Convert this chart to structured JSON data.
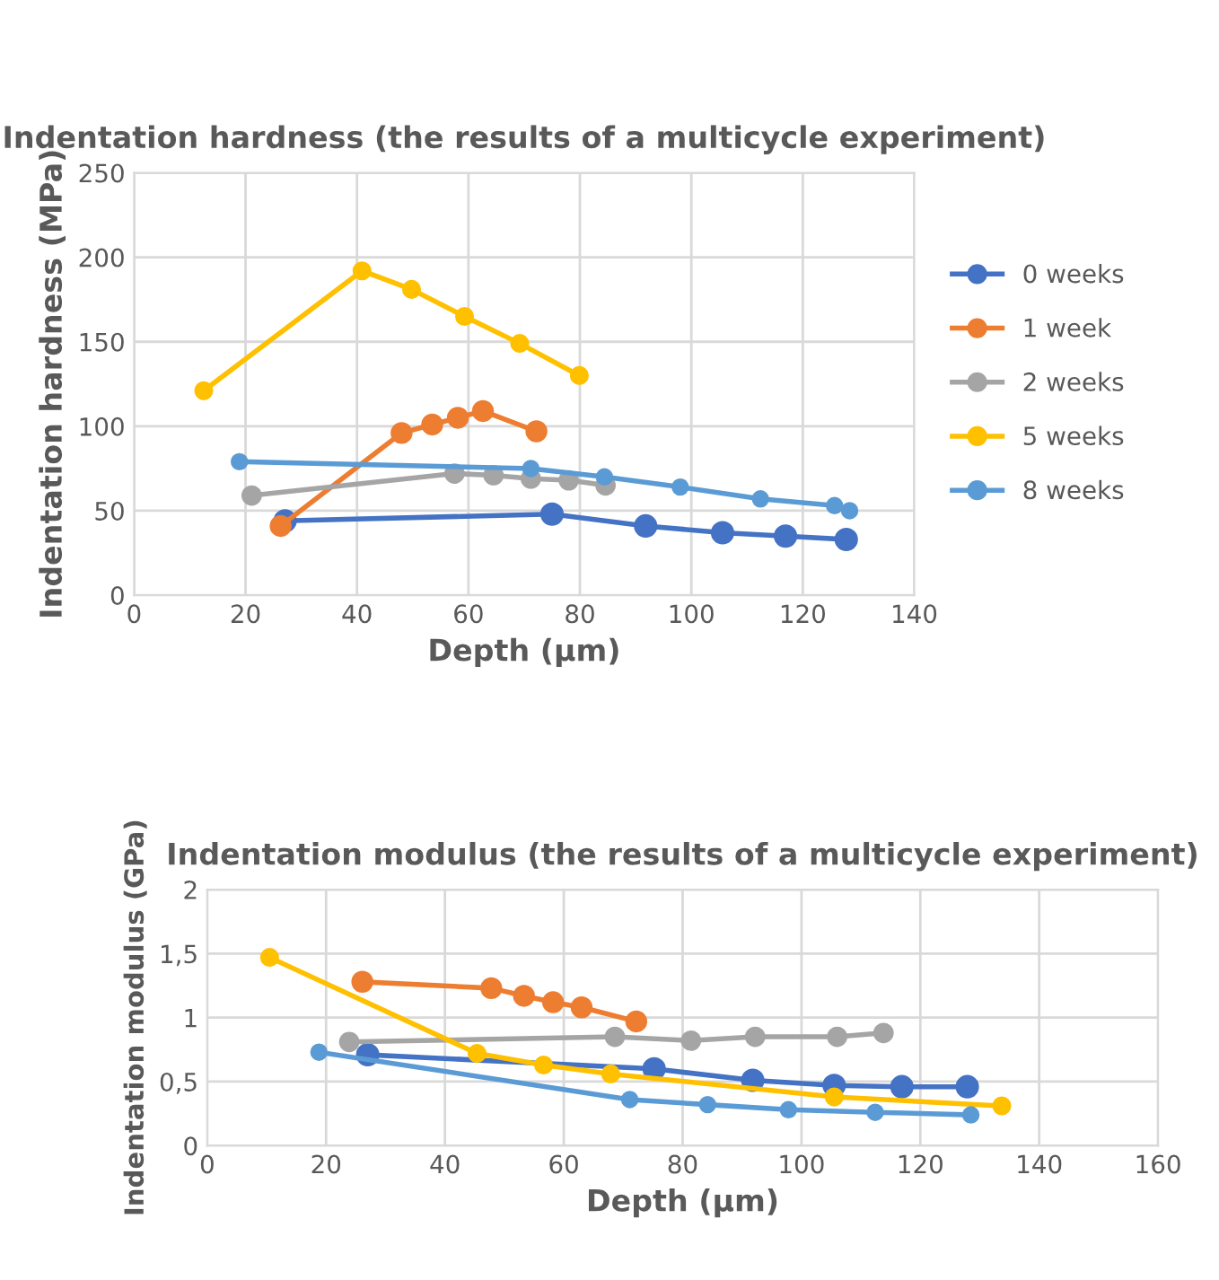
{
  "chart_data": [
    {
      "type": "line",
      "title": "Indentation hardness (the results of a multicycle experiment)",
      "xlabel": "Depth (µm)",
      "ylabel": "Indentation hardness (MPa)",
      "xlim": [
        0,
        140
      ],
      "xticks": [
        0,
        20,
        40,
        60,
        80,
        100,
        120,
        140
      ],
      "ylim": [
        0,
        250
      ],
      "yticks": [
        0,
        50,
        100,
        150,
        200,
        250
      ],
      "grid": true,
      "legend": "right",
      "marker": "circle",
      "line_style": "solid",
      "series": [
        {
          "name": "0 weeks",
          "color": "#4472c4",
          "x": [
            27.1,
            75.0,
            91.8,
            105.6,
            116.9,
            127.8
          ],
          "values": [
            44,
            48,
            41,
            37,
            35,
            33
          ]
        },
        {
          "name": "1 week",
          "color": "#ed7d31",
          "x": [
            26.3,
            48.0,
            53.5,
            58.1,
            62.6,
            72.2
          ],
          "values": [
            41,
            96,
            101,
            105,
            109,
            97
          ]
        },
        {
          "name": "2 weeks",
          "color": "#a5a5a5",
          "x": [
            21.1,
            57.5,
            64.5,
            71.2,
            78.0,
            84.6
          ],
          "values": [
            59,
            72,
            71,
            69,
            68,
            65
          ]
        },
        {
          "name": "5 weeks",
          "color": "#ffc000",
          "x": [
            12.5,
            40.9,
            49.8,
            59.3,
            69.2,
            79.9
          ],
          "values": [
            121,
            192,
            181,
            165,
            149,
            130
          ]
        },
        {
          "name": "8 weeks",
          "color": "#5b9bd5",
          "x": [
            18.9,
            71.2,
            84.4,
            98.0,
            112.4,
            125.7,
            128.4
          ],
          "values": [
            79,
            75,
            70,
            64,
            57,
            53,
            50
          ]
        }
      ]
    },
    {
      "type": "line",
      "title": "Indentation modulus (the results of a multicycle experiment)",
      "xlabel": "Depth (µm)",
      "ylabel": "Indentation modulus (GPa)",
      "xlim": [
        0,
        160
      ],
      "xticks": [
        0,
        20,
        40,
        60,
        80,
        100,
        120,
        140,
        160
      ],
      "ylim": [
        0,
        2
      ],
      "yticks": [
        0,
        {
          "value": 0.5,
          "label": "0,5"
        },
        1,
        {
          "value": 1.5,
          "label": "1,5"
        },
        2
      ],
      "grid": true,
      "marker": "circle",
      "line_style": "solid",
      "series": [
        {
          "color": "#4472c4",
          "x": [
            27.0,
            75.2,
            91.8,
            105.5,
            116.9,
            127.9
          ],
          "values": [
            0.71,
            0.6,
            0.51,
            0.47,
            0.46,
            0.46
          ]
        },
        {
          "color": "#ed7d31",
          "x": [
            26.1,
            47.8,
            53.3,
            58.2,
            63.0,
            72.2
          ],
          "values": [
            1.28,
            1.23,
            1.17,
            1.12,
            1.08,
            0.97
          ]
        },
        {
          "color": "#a5a5a5",
          "x": [
            23.9,
            68.6,
            81.4,
            92.2,
            106.0,
            113.8
          ],
          "values": [
            0.81,
            0.85,
            0.82,
            0.85,
            0.85,
            0.88
          ]
        },
        {
          "color": "#ffc000",
          "x": [
            10.5,
            45.4,
            56.6,
            67.9,
            105.5,
            133.7
          ],
          "values": [
            1.47,
            0.72,
            0.63,
            0.56,
            0.38,
            0.31
          ]
        },
        {
          "color": "#5b9bd5",
          "x": [
            18.8,
            71.1,
            84.2,
            97.8,
            112.4,
            128.5
          ],
          "values": [
            0.73,
            0.36,
            0.32,
            0.28,
            0.26,
            0.24
          ]
        }
      ]
    }
  ]
}
